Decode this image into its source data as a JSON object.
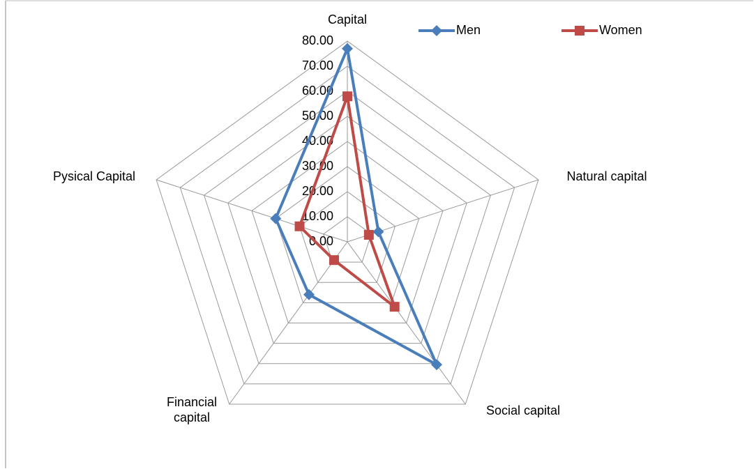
{
  "chart_data": {
    "type": "radar",
    "categories": [
      "Capital",
      "Natural capital",
      "Social capital",
      "Financial capital",
      "Pysical Capital"
    ],
    "series": [
      {
        "name": "Men",
        "color": "#4a7ebb",
        "values": [
          77,
          13,
          60.5,
          26,
          30
        ]
      },
      {
        "name": "Women",
        "color": "#be4b48",
        "values": [
          58,
          9,
          32,
          9,
          20
        ]
      }
    ],
    "ylim": [
      0,
      80
    ],
    "yticks": [
      {
        "value": 0,
        "label": "0.00"
      },
      {
        "value": 10,
        "label": "10.00"
      },
      {
        "value": 20,
        "label": "20.00"
      },
      {
        "value": 30,
        "label": "30.00"
      },
      {
        "value": 40,
        "label": "40.00"
      },
      {
        "value": 50,
        "label": "50.00"
      },
      {
        "value": 60,
        "label": "60.00"
      },
      {
        "value": 70,
        "label": "70.00"
      },
      {
        "value": 80,
        "label": "80.00"
      }
    ],
    "grid": true,
    "legend": "top"
  }
}
